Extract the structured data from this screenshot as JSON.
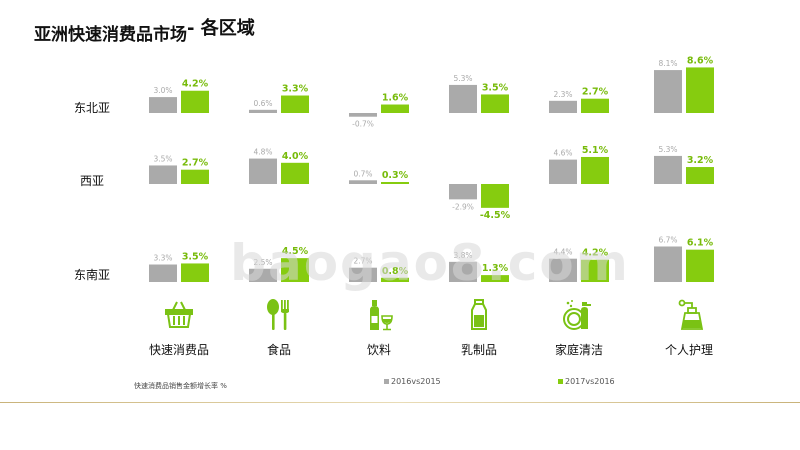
{
  "title": {
    "main": "亚洲快速消费品市场",
    "sub": "- 各区域"
  },
  "footnote": "快速消费品销售金额增长率 %",
  "watermark": "baogao8.com",
  "colors": {
    "prev": "#aaaaaa",
    "curr": "#86cc0f",
    "curr_text": "#77bb0a",
    "icon": "#7ac214"
  },
  "category_icons": [
    "basket-icon",
    "spoon-fork-icon",
    "bottle-glass-icon",
    "milk-bottle-icon",
    "cleaning-icon",
    "spray-bottle-icon"
  ],
  "chart_data": {
    "type": "bar",
    "categories": [
      "快速消费品",
      "食品",
      "饮料",
      "乳制品",
      "家庭清洁",
      "个人护理"
    ],
    "regions": [
      "东北亚",
      "西亚",
      "东南亚"
    ],
    "legend": [
      "2016vs2015",
      "2017vs2016"
    ],
    "unit": "%",
    "series": [
      {
        "region": "东北亚",
        "values": [
          {
            "prev": 3.0,
            "curr": 4.2,
            "prev_label": "3.0%",
            "curr_label": "4.2%"
          },
          {
            "prev": 0.6,
            "curr": 3.3,
            "prev_label": "0.6%",
            "curr_label": "3.3%"
          },
          {
            "prev": -0.7,
            "curr": 1.6,
            "prev_label": "-0.7%",
            "curr_label": "1.6%"
          },
          {
            "prev": 5.3,
            "curr": 3.5,
            "prev_label": "5.3%",
            "curr_label": "3.5%"
          },
          {
            "prev": 2.3,
            "curr": 2.7,
            "prev_label": "2.3%",
            "curr_label": "2.7%"
          },
          {
            "prev": 8.1,
            "curr": 8.6,
            "prev_label": "8.1%",
            "curr_label": "8.6%"
          }
        ]
      },
      {
        "region": "西亚",
        "values": [
          {
            "prev": 3.5,
            "curr": 2.7,
            "prev_label": "3.5%",
            "curr_label": "2.7%"
          },
          {
            "prev": 4.8,
            "curr": 4.0,
            "prev_label": "4.8%",
            "curr_label": "4.0%"
          },
          {
            "prev": 0.7,
            "curr": 0.3,
            "prev_label": "0.7%",
            "curr_label": "0.3%"
          },
          {
            "prev": -2.9,
            "curr": -4.5,
            "prev_label": "-2.9%",
            "curr_label": "-4.5%"
          },
          {
            "prev": 4.6,
            "curr": 5.1,
            "prev_label": "4.6%",
            "curr_label": "5.1%"
          },
          {
            "prev": 5.3,
            "curr": 3.2,
            "prev_label": "5.3%",
            "curr_label": "3.2%"
          }
        ]
      },
      {
        "region": "东南亚",
        "values": [
          {
            "prev": 3.3,
            "curr": 3.5,
            "prev_label": "3.3%",
            "curr_label": "3.5%"
          },
          {
            "prev": 2.5,
            "curr": 4.5,
            "prev_label": "2.5%",
            "curr_label": "4.5%"
          },
          {
            "prev": 2.7,
            "curr": 0.8,
            "prev_label": "2.7%",
            "curr_label": "0.8%"
          },
          {
            "prev": 3.8,
            "curr": 1.3,
            "prev_label": "3.8%",
            "curr_label": "1.3%"
          },
          {
            "prev": 4.4,
            "curr": 4.2,
            "prev_label": "4.4%",
            "curr_label": "4.2%"
          },
          {
            "prev": 6.7,
            "curr": 6.1,
            "prev_label": "6.7%",
            "curr_label": "6.1%"
          }
        ]
      }
    ]
  }
}
